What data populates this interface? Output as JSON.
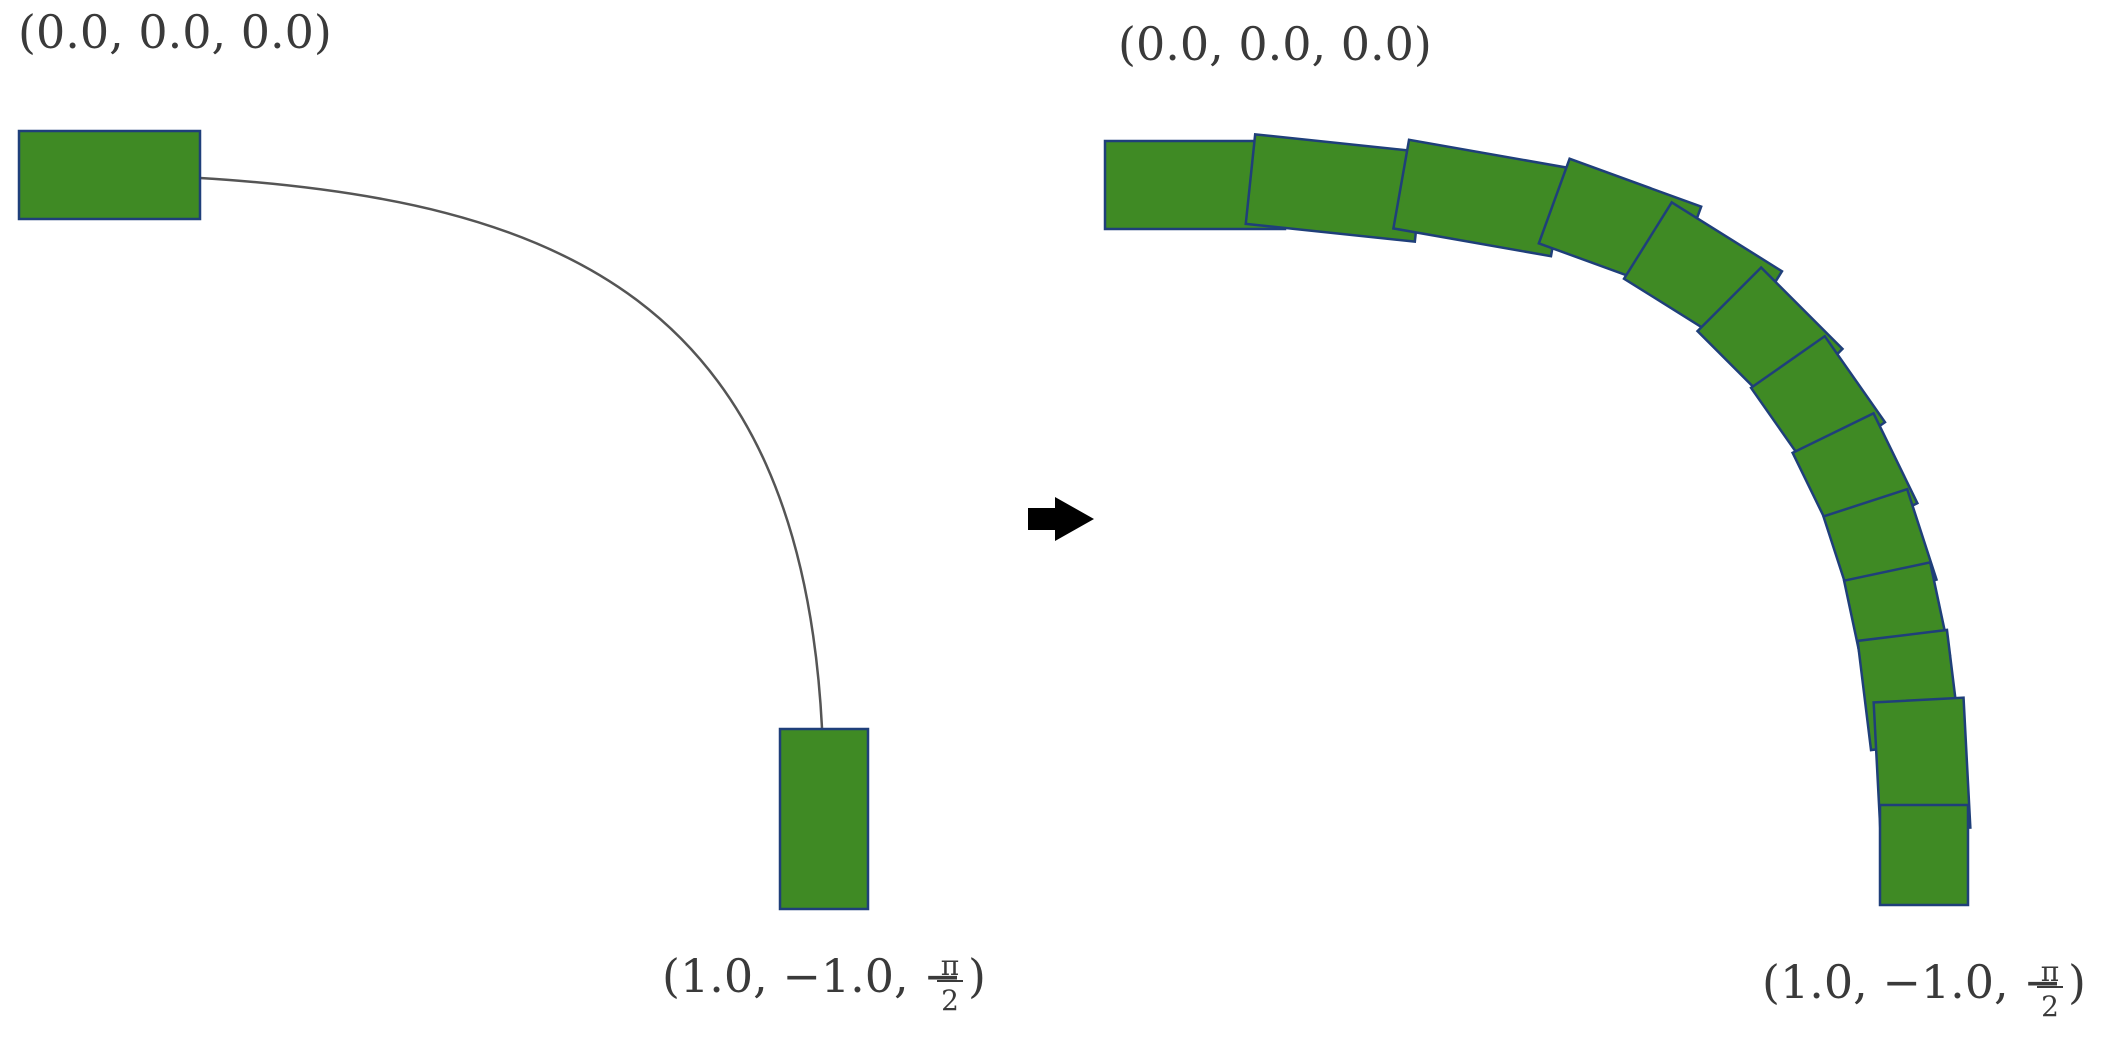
{
  "colors": {
    "vehicle_fill": "#3f8a24",
    "vehicle_stroke": "#1f3f7a",
    "path_line": "#555555",
    "arrow": "#000000",
    "text": "#3a3a3a"
  },
  "left_panel": {
    "start_label": "(0.0, 0.0, 0.0)",
    "end_label_prefix": "(1.0, −1.0, −",
    "end_label_frac_num": "π",
    "end_label_frac_den": "2",
    "end_label_suffix": ")"
  },
  "arrow_icon": "right-arrow-icon",
  "right_panel": {
    "start_label": "(0.0, 0.0, 0.0)",
    "end_label_prefix": "(1.0, −1.0, −",
    "end_label_frac_num": "π",
    "end_label_frac_den": "2",
    "end_label_suffix": ")",
    "intermediate_pose_count_note": ""
  }
}
